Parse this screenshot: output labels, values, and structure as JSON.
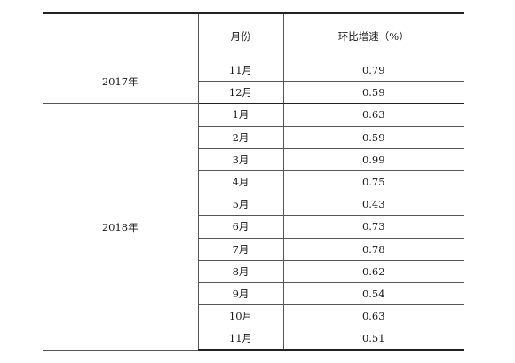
{
  "table": {
    "headers": {
      "year": "",
      "month": "月份",
      "growth": "环比增速（%）"
    },
    "groups": [
      {
        "year": "2017年",
        "rows": [
          {
            "month": "11月",
            "value": "0.79"
          },
          {
            "month": "12月",
            "value": "0.59"
          }
        ]
      },
      {
        "year": "2018年",
        "rows": [
          {
            "month": "1月",
            "value": "0.63"
          },
          {
            "month": "2月",
            "value": "0.59"
          },
          {
            "month": "3月",
            "value": "0.99"
          },
          {
            "month": "4月",
            "value": "0.75"
          },
          {
            "month": "5月",
            "value": "0.43"
          },
          {
            "month": "6月",
            "value": "0.73"
          },
          {
            "month": "7月",
            "value": "0.78"
          },
          {
            "month": "8月",
            "value": "0.62"
          },
          {
            "month": "9月",
            "value": "0.54"
          },
          {
            "month": "10月",
            "value": "0.63"
          },
          {
            "month": "11月",
            "value": "0.51"
          }
        ]
      }
    ]
  }
}
